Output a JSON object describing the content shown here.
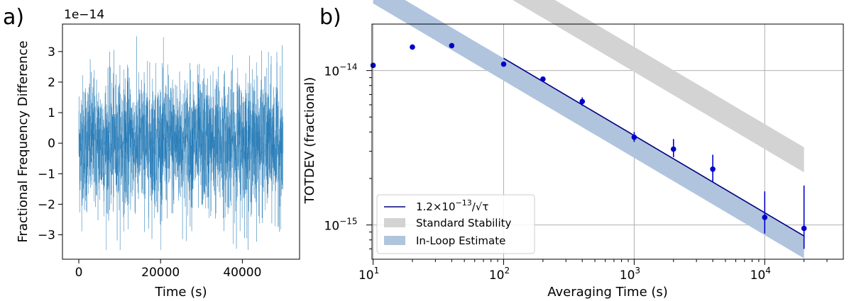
{
  "chart_data": [
    {
      "type": "line",
      "panel_label": "a)",
      "xlabel": "Time (s)",
      "ylabel": "Fractional Frequency Difference",
      "offset_text": "1e−14",
      "xlim": [
        -4000,
        54000
      ],
      "ylim": [
        -3.8,
        3.9
      ],
      "xticks": [
        0,
        20000,
        40000
      ],
      "xtick_labels": [
        "0",
        "20000",
        "40000"
      ],
      "yticks": [
        3,
        2,
        1,
        0,
        -1,
        -2,
        -3
      ],
      "ytick_labels": [
        "3",
        "2",
        "1",
        "0",
        "−1",
        "−2",
        "−3"
      ],
      "series": [
        {
          "name": "frequency difference",
          "color": "#1f77b4",
          "description": "Dense white-noise trace sampled every 10 s, values approx ±3.5e-14, mean ≈ 0"
        }
      ],
      "noise_envelope": {
        "x_range": [
          0,
          50000
        ],
        "typical_sigma": 1.1,
        "extremes": [
          3.5,
          -3.5
        ]
      }
    },
    {
      "type": "scatter",
      "panel_label": "b)",
      "xlabel": "Averaging Time (s)",
      "ylabel": "TOTDEV (fractional)",
      "xscale": "log",
      "yscale": "log",
      "xlim": [
        9.8,
        40000
      ],
      "ylim": [
        6e-16,
        2e-14
      ],
      "xticks": [
        10,
        100,
        1000,
        10000
      ],
      "xtick_labels_base": [
        "10",
        "10",
        "10",
        "10"
      ],
      "xtick_labels_exp": [
        "1",
        "2",
        "3",
        "4"
      ],
      "yticks": [
        1e-14,
        1e-15
      ],
      "ytick_labels_base": [
        "10",
        "10"
      ],
      "ytick_labels_exp": [
        "−14",
        "−15"
      ],
      "points": {
        "color": "#0000cc",
        "x": [
          10,
          20,
          40,
          100,
          200,
          400,
          1000,
          2000,
          4000,
          10000,
          20000
        ],
        "y": [
          1.08e-14,
          1.42e-14,
          1.45e-14,
          1.1e-14,
          8.8e-15,
          6.3e-15,
          3.7e-15,
          3.1e-15,
          2.3e-15,
          1.12e-15,
          9.5e-16
        ],
        "err_low": [
          1.04e-14,
          1.39e-14,
          1.42e-14,
          1.07e-14,
          8.5e-15,
          5.9e-15,
          3.45e-15,
          2.75e-15,
          1.9e-15,
          8.8e-16,
          7e-16
        ],
        "err_high": [
          1.12e-14,
          1.45e-14,
          1.48e-14,
          1.13e-14,
          9.1e-15,
          6.7e-15,
          4e-15,
          3.6e-15,
          2.85e-15,
          1.65e-15,
          1.8e-15
        ]
      },
      "fit_line": {
        "label_prefix": "1.2×10",
        "label_exp": "−13",
        "label_suffix": "/√τ",
        "coefficient": 1.2e-13,
        "exponent": -0.5,
        "x_range": [
          100,
          20000
        ],
        "color": "#000080"
      },
      "bands": [
        {
          "name": "Standard Stability",
          "color": "#d3d3d3",
          "x_range": [
            10,
            20000
          ],
          "upper_coef": 4.5e-13,
          "lower_coef": 3.1e-13
        },
        {
          "name": "In-Loop Estimate",
          "color": "#b0c4de",
          "x_range": [
            10,
            20000
          ],
          "upper_coef": 1.2e-13,
          "lower_coef": 8.6e-14
        }
      ],
      "legend": {
        "placement": "lower-left",
        "entries": [
          "1.2×10⁻¹³/√τ",
          "Standard Stability",
          "In-Loop Estimate"
        ]
      }
    }
  ]
}
